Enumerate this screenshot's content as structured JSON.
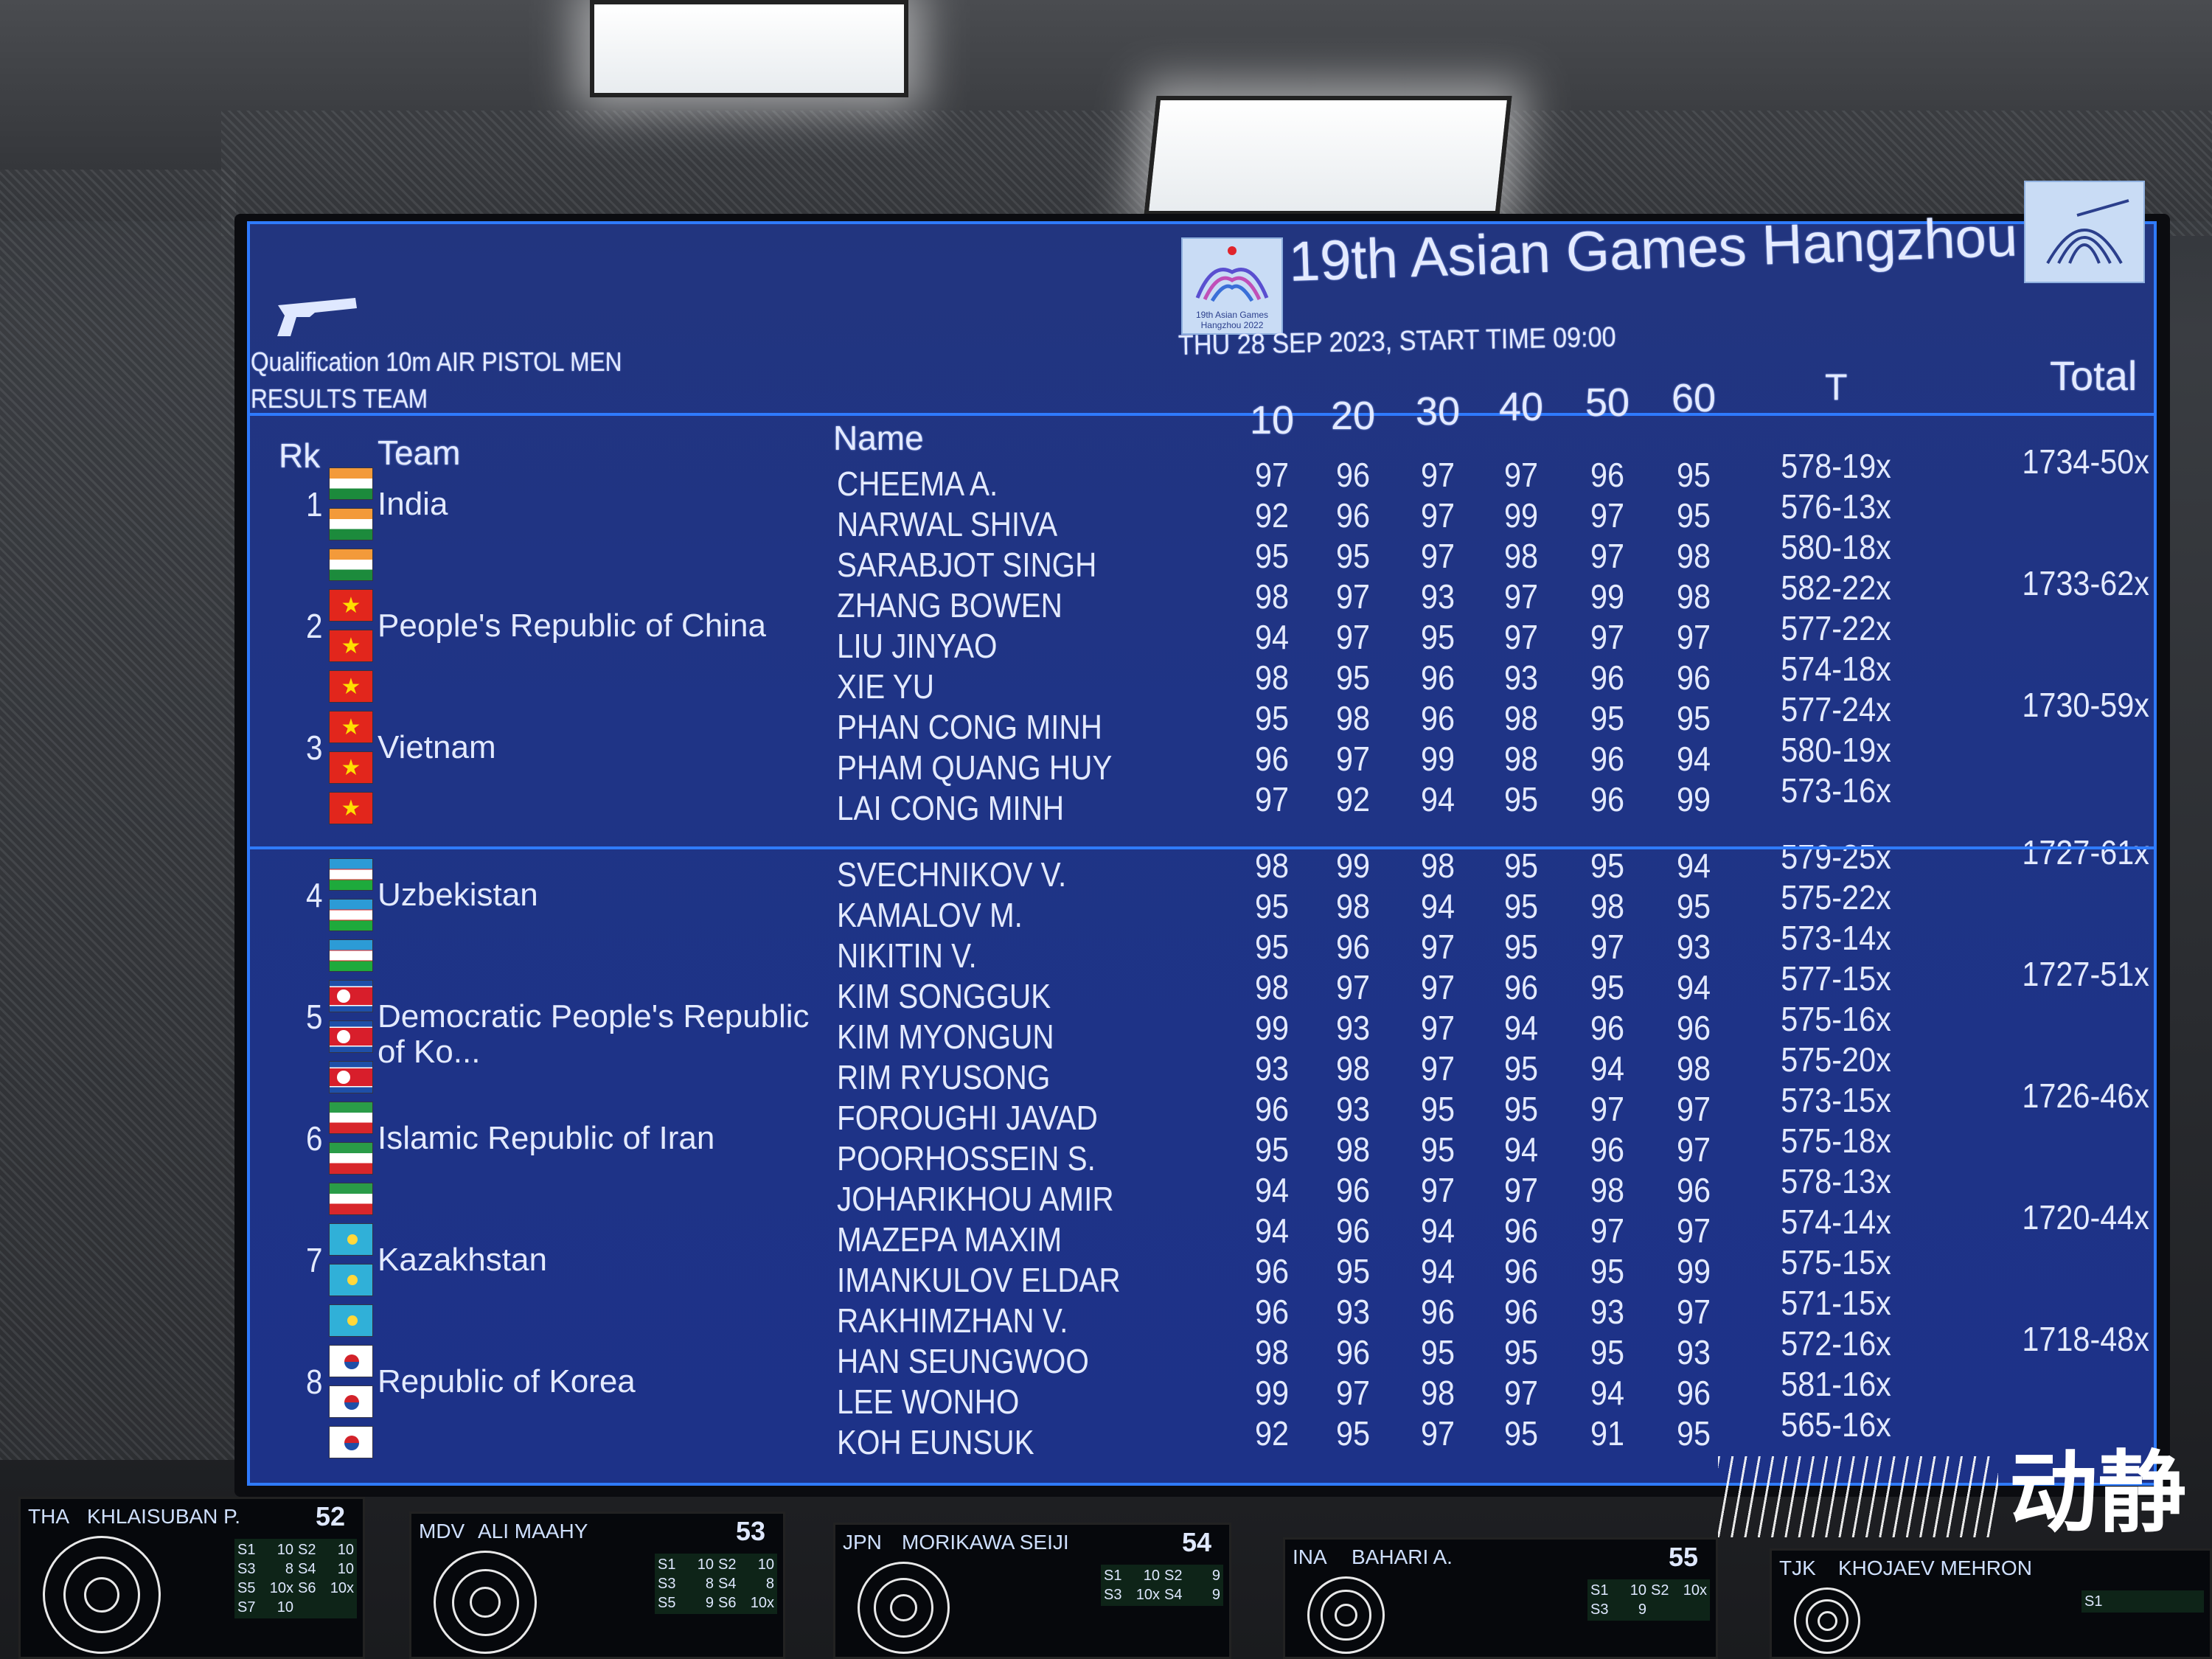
{
  "header": {
    "event_line1": "Qualification 10m AIR PISTOL MEN",
    "event_line2": "RESULTS TEAM",
    "title": "19th Asian Games Hangzhou",
    "date_line": "THU 28 SEP 2023, START TIME 09:00",
    "logo_caption": "19th Asian Games Hangzhou 2022",
    "left_icon": "air-pistol-icon",
    "right_icon": "shooting-pictogram-icon"
  },
  "columns": {
    "rank": "Rk",
    "team": "Team",
    "name": "Name",
    "series": [
      "10",
      "20",
      "30",
      "40",
      "50",
      "60"
    ],
    "t": "T",
    "total": "Total"
  },
  "colors": {
    "screen_bg": "#1f3486",
    "accent_line": "#2f7bff",
    "text": "#e3eaff"
  },
  "teams": [
    {
      "rank": "1",
      "name": "India",
      "flag": "india",
      "total": "1734-50x",
      "athletes": [
        {
          "name": "CHEEMA A.",
          "series": [
            "97",
            "96",
            "97",
            "97",
            "96",
            "95"
          ],
          "t": "578-19x"
        },
        {
          "name": "NARWAL SHIVA",
          "series": [
            "92",
            "96",
            "97",
            "99",
            "97",
            "95"
          ],
          "t": "576-13x"
        },
        {
          "name": "SARABJOT SINGH",
          "series": [
            "95",
            "95",
            "97",
            "98",
            "97",
            "98"
          ],
          "t": "580-18x"
        }
      ]
    },
    {
      "rank": "2",
      "name": "People's Republic of China",
      "flag": "china",
      "total": "1733-62x",
      "athletes": [
        {
          "name": "ZHANG BOWEN",
          "series": [
            "98",
            "97",
            "93",
            "97",
            "99",
            "98"
          ],
          "t": "582-22x"
        },
        {
          "name": "LIU JINYAO",
          "series": [
            "94",
            "97",
            "95",
            "97",
            "97",
            "97"
          ],
          "t": "577-22x"
        },
        {
          "name": "XIE YU",
          "series": [
            "98",
            "95",
            "96",
            "93",
            "96",
            "96"
          ],
          "t": "574-18x"
        }
      ]
    },
    {
      "rank": "3",
      "name": "Vietnam",
      "flag": "vietnam",
      "total": "1730-59x",
      "athletes": [
        {
          "name": "PHAN CONG MINH",
          "series": [
            "95",
            "98",
            "96",
            "98",
            "95",
            "95"
          ],
          "t": "577-24x"
        },
        {
          "name": "PHAM QUANG HUY",
          "series": [
            "96",
            "97",
            "99",
            "98",
            "96",
            "94"
          ],
          "t": "580-19x"
        },
        {
          "name": "LAI CONG MINH",
          "series": [
            "97",
            "92",
            "94",
            "95",
            "96",
            "99"
          ],
          "t": "573-16x"
        }
      ]
    },
    {
      "rank": "4",
      "name": "Uzbekistan",
      "flag": "uzbekistan",
      "total": "1727-61x",
      "athletes": [
        {
          "name": "SVECHNIKOV V.",
          "series": [
            "98",
            "99",
            "98",
            "95",
            "95",
            "94"
          ],
          "t": "579-25x"
        },
        {
          "name": "KAMALOV M.",
          "series": [
            "95",
            "98",
            "94",
            "95",
            "98",
            "95"
          ],
          "t": "575-22x"
        },
        {
          "name": "NIKITIN V.",
          "series": [
            "95",
            "96",
            "97",
            "95",
            "97",
            "93"
          ],
          "t": "573-14x"
        }
      ]
    },
    {
      "rank": "5",
      "name": "Democratic People's Republic of Ko...",
      "flag": "dprk",
      "total": "1727-51x",
      "athletes": [
        {
          "name": "KIM SONGGUK",
          "series": [
            "98",
            "97",
            "97",
            "96",
            "95",
            "94"
          ],
          "t": "577-15x"
        },
        {
          "name": "KIM MYONGUN",
          "series": [
            "99",
            "93",
            "97",
            "94",
            "96",
            "96"
          ],
          "t": "575-16x"
        },
        {
          "name": "RIM RYUSONG",
          "series": [
            "93",
            "98",
            "97",
            "95",
            "94",
            "98"
          ],
          "t": "575-20x"
        }
      ]
    },
    {
      "rank": "6",
      "name": "Islamic Republic of Iran",
      "flag": "iran",
      "total": "1726-46x",
      "athletes": [
        {
          "name": "FOROUGHI JAVAD",
          "series": [
            "96",
            "93",
            "95",
            "95",
            "97",
            "97"
          ],
          "t": "573-15x"
        },
        {
          "name": "POORHOSSEIN S.",
          "series": [
            "95",
            "98",
            "95",
            "94",
            "96",
            "97"
          ],
          "t": "575-18x"
        },
        {
          "name": "JOHARIKHOU AMIR",
          "series": [
            "94",
            "96",
            "97",
            "97",
            "98",
            "96"
          ],
          "t": "578-13x"
        }
      ]
    },
    {
      "rank": "7",
      "name": "Kazakhstan",
      "flag": "kazakhstan",
      "total": "1720-44x",
      "athletes": [
        {
          "name": "MAZEPA MAXIM",
          "series": [
            "94",
            "96",
            "94",
            "96",
            "97",
            "97"
          ],
          "t": "574-14x"
        },
        {
          "name": "IMANKULOV ELDAR",
          "series": [
            "96",
            "95",
            "94",
            "96",
            "95",
            "99"
          ],
          "t": "575-15x"
        },
        {
          "name": "RAKHIMZHAN V.",
          "series": [
            "96",
            "93",
            "96",
            "96",
            "93",
            "97"
          ],
          "t": "571-15x"
        }
      ]
    },
    {
      "rank": "8",
      "name": "Republic of Korea",
      "flag": "korea",
      "total": "1718-48x",
      "athletes": [
        {
          "name": "HAN SEUNGWOO",
          "series": [
            "98",
            "96",
            "95",
            "95",
            "95",
            "93"
          ],
          "t": "572-16x"
        },
        {
          "name": "LEE WONHO",
          "series": [
            "99",
            "97",
            "98",
            "97",
            "94",
            "96"
          ],
          "t": "581-16x"
        },
        {
          "name": "KOH EUNSUK",
          "series": [
            "92",
            "95",
            "97",
            "95",
            "91",
            "95"
          ],
          "t": "565-16x"
        }
      ]
    }
  ],
  "monitors": [
    {
      "code": "THA",
      "name": "KHLAISUBAN P.",
      "score": "52",
      "shots": [
        [
          "S1",
          "10"
        ],
        [
          "S2",
          "10"
        ],
        [
          "S3",
          "8"
        ],
        [
          "S4",
          "10"
        ],
        [
          "S5",
          "10x"
        ],
        [
          "S6",
          "10x"
        ],
        [
          "S7",
          "10"
        ]
      ]
    },
    {
      "code": "MDV",
      "name": "ALI MAAHY",
      "score": "53",
      "shots": [
        [
          "S1",
          "10"
        ],
        [
          "S2",
          "10"
        ],
        [
          "S3",
          "8"
        ],
        [
          "S4",
          "8"
        ],
        [
          "S5",
          "9"
        ],
        [
          "S6",
          "10x"
        ]
      ]
    },
    {
      "code": "JPN",
      "name": "MORIKAWA SEIJI",
      "score": "54",
      "shots": [
        [
          "S1",
          "10"
        ],
        [
          "S2",
          "9"
        ],
        [
          "S3",
          "10x"
        ],
        [
          "S4",
          "9"
        ]
      ]
    },
    {
      "code": "INA",
      "name": "BAHARI A.",
      "score": "55",
      "shots": [
        [
          "S1",
          "10"
        ],
        [
          "S2",
          "10x"
        ],
        [
          "S3",
          "9"
        ]
      ]
    },
    {
      "code": "TJK",
      "name": "KHOJAEV MEHRON",
      "score": "",
      "shots": [
        [
          "S1",
          ""
        ]
      ]
    }
  ],
  "watermark": "动静"
}
